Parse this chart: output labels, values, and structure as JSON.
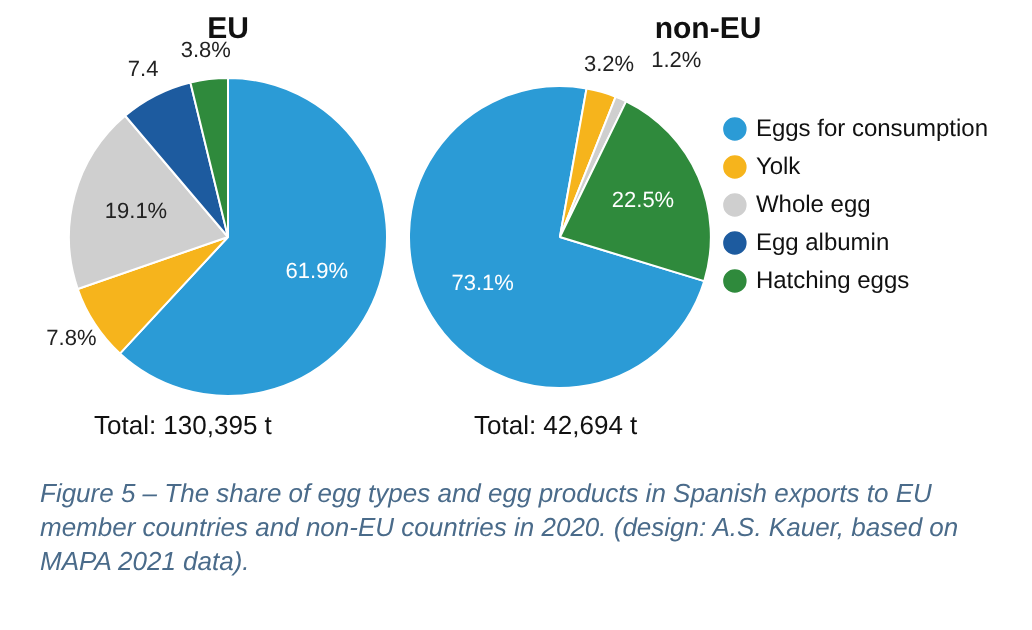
{
  "chart_data": [
    {
      "type": "pie",
      "title": "EU",
      "categories": [
        null,
        null,
        null,
        null,
        null
      ],
      "values": [
        61.9,
        7.8,
        19.1,
        7.4,
        3.8
      ],
      "colors": [
        "#2b9bd6",
        "#f6b41c",
        "#cfcfcf",
        "#1d5b9f",
        "#2f8a3c"
      ],
      "value_labels": [
        "61.9%",
        "7.8%",
        "19.1%",
        "7.4",
        "3.8%"
      ],
      "legend": false,
      "annotations": [
        "Total: 130,395 t"
      ]
    },
    {
      "type": "pie",
      "title": "non-EU",
      "categories": [
        "Eggs for consumption",
        "Yolk",
        "Whole egg",
        "Egg albumin",
        "Hatching eggs"
      ],
      "values": [
        73.1,
        3.2,
        1.2,
        0,
        22.5
      ],
      "colors": [
        "#2b9bd6",
        "#f6b41c",
        "#cfcfcf",
        "#1d5b9f",
        "#2f8a3c"
      ],
      "value_labels": [
        "73.1%",
        "3.2%",
        "1.2%",
        null,
        "22.5%"
      ],
      "legend": "right",
      "annotations": [
        "Total: 42,694 t",
        "Figure 5 – The share of egg types and egg products in Spanish exports to EU member countries and non-EU countries in 2020. (design: A.S. Kauer, based on MAPA 2021 data)."
      ]
    }
  ]
}
